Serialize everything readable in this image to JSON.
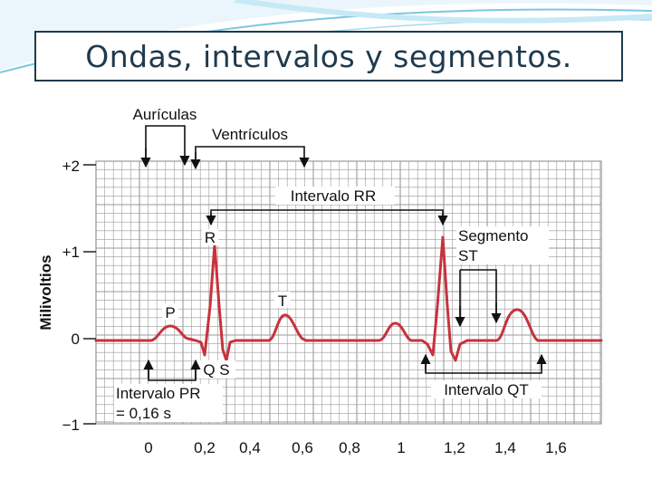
{
  "slide": {
    "title": "Ondas, intervalos y segmentos."
  },
  "colors": {
    "title": "#1f3a4d",
    "grid": "#9a9a9a",
    "trace": "#c8323c",
    "annotation": "#111111",
    "swoosh": "#7cc6e2"
  },
  "figure": {
    "y_axis_label": "Milivoltios",
    "y_ticks": [
      "+2",
      "+1",
      "0",
      "−1"
    ],
    "x_ticks": [
      "0",
      "0,2",
      "0,4",
      "0,6",
      "0,8",
      "1",
      "1,2",
      "1,4",
      "1,6"
    ],
    "labels": {
      "auriculas": "Aurículas",
      "ventriculos": "Ventrículos",
      "intervalo_rr": "Intervalo RR",
      "segmento": "Segmento",
      "st": "ST",
      "r": "R",
      "t": "T",
      "p": "P",
      "qs": "Q S",
      "intervalo_pr": "Intervalo PR",
      "pr_value": "= 0,16 s",
      "intervalo_qt": "Intervalo QT"
    }
  }
}
